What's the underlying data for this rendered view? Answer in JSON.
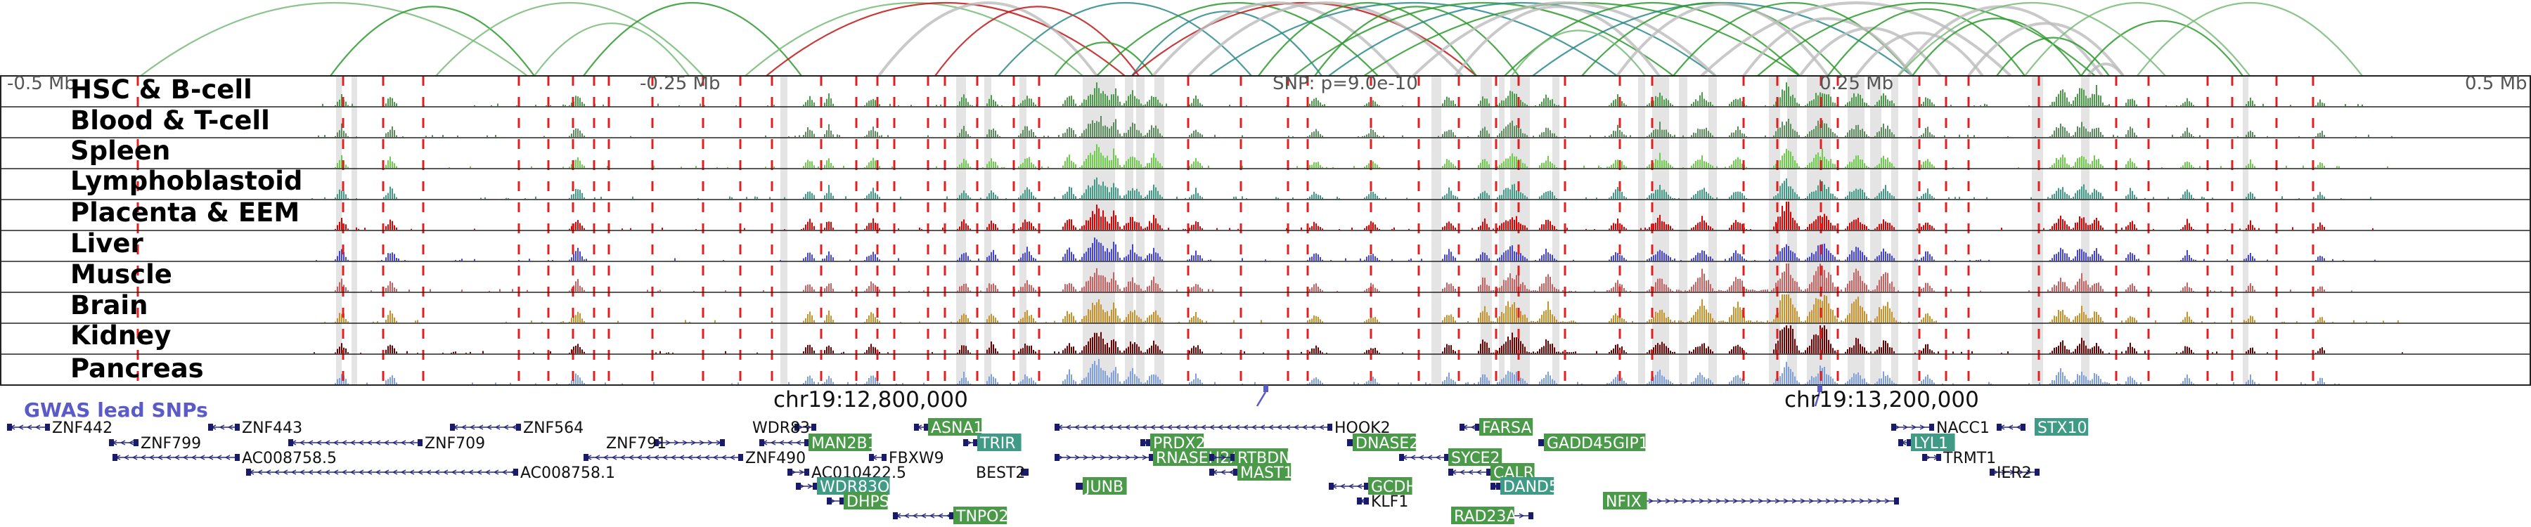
{
  "scale": {
    "left": "-0.5 Mb",
    "left_mid": "-0.25 Mb",
    "snp": "SNP: p=9.0e-10",
    "right_mid": "0.25 Mb",
    "right": "0.5 Mb"
  },
  "gwas_label": "GWAS lead SNPs",
  "chromosome_labels": [
    "chr19:12,800,000",
    "chr19:13,200,000"
  ],
  "tracks": [
    {
      "name": "HSC & B-cell",
      "color": "#4a9a4a"
    },
    {
      "name": "Blood & T-cell",
      "color": "#5b8c5b"
    },
    {
      "name": "Spleen",
      "color": "#6dcc4a"
    },
    {
      "name": "Lymphoblastoid",
      "color": "#3f9a86"
    },
    {
      "name": "Placenta & EEM",
      "color": "#e00000"
    },
    {
      "name": "Liver",
      "color": "#4444dd"
    },
    {
      "name": "Muscle",
      "color": "#c86060"
    },
    {
      "name": "Brain",
      "color": "#c8922a"
    },
    {
      "name": "Kidney",
      "color": "#6a0000"
    },
    {
      "name": "Pancreas",
      "color": "#7f9fdd"
    }
  ],
  "arc_colors": {
    "green": "#2e9a2e",
    "red": "#c01818",
    "teal": "#2a8a8a",
    "gray": "#bbbbbb",
    "light_green": "#77bb77"
  },
  "genes": [
    {
      "name": "ZNF442",
      "highlight": false
    },
    {
      "name": "ZNF799",
      "highlight": false
    },
    {
      "name": "ZNF443",
      "highlight": false
    },
    {
      "name": "AC008758.5",
      "highlight": false
    },
    {
      "name": "ZNF709",
      "highlight": false
    },
    {
      "name": "ZNF564",
      "highlight": false
    },
    {
      "name": "AC008758.1",
      "highlight": false
    },
    {
      "name": "ZNF791",
      "highlight": false
    },
    {
      "name": "ZNF490",
      "highlight": false
    },
    {
      "name": "WDR83",
      "highlight": false
    },
    {
      "name": "MAN2B1",
      "highlight": true
    },
    {
      "name": "FBXW9",
      "highlight": false
    },
    {
      "name": "AC010422.5",
      "highlight": false
    },
    {
      "name": "WDR83OS",
      "highlight": true
    },
    {
      "name": "DHPS",
      "highlight": true
    },
    {
      "name": "ASNA1",
      "highlight": true
    },
    {
      "name": "TRIR",
      "highlight": true
    },
    {
      "name": "BEST2",
      "highlight": false
    },
    {
      "name": "TNPO2",
      "highlight": true
    },
    {
      "name": "RNASEH2A",
      "highlight": true
    },
    {
      "name": "PRDX2",
      "highlight": true
    },
    {
      "name": "JUNB",
      "highlight": true
    },
    {
      "name": "MAST1",
      "highlight": true
    },
    {
      "name": "RTBDN",
      "highlight": true
    },
    {
      "name": "HOOK2",
      "highlight": false
    },
    {
      "name": "DNASE2",
      "highlight": true
    },
    {
      "name": "GCDH",
      "highlight": true
    },
    {
      "name": "KLF1",
      "highlight": false
    },
    {
      "name": "FARSA",
      "highlight": true
    },
    {
      "name": "SYCE2",
      "highlight": true
    },
    {
      "name": "CALR",
      "highlight": true
    },
    {
      "name": "GADD45GIP1",
      "highlight": true
    },
    {
      "name": "DAND5",
      "highlight": true
    },
    {
      "name": "RAD23A",
      "highlight": true
    },
    {
      "name": "NFIX",
      "highlight": true
    },
    {
      "name": "NACC1",
      "highlight": false
    },
    {
      "name": "LYL1",
      "highlight": true
    },
    {
      "name": "TRMT1",
      "highlight": false
    },
    {
      "name": "IER2",
      "highlight": false
    },
    {
      "name": "STX10",
      "highlight": true
    }
  ]
}
